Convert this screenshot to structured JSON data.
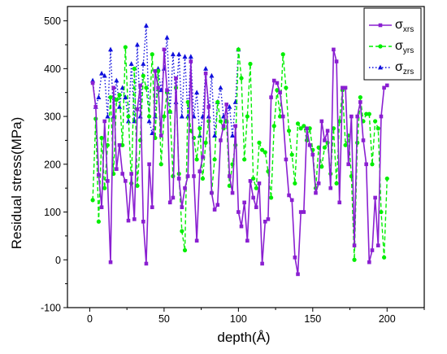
{
  "chart_data": {
    "type": "line",
    "xlabel": "depth(Å)",
    "ylabel": "Residual stress(MPa)",
    "xlim": [
      -15,
      225
    ],
    "ylim": [
      -100,
      530
    ],
    "x_ticks": [
      0,
      50,
      100,
      150,
      200
    ],
    "y_ticks": [
      -100,
      0,
      100,
      200,
      300,
      400,
      500
    ],
    "grid": false,
    "legend_position": "top-right",
    "series": [
      {
        "name": "σxrs",
        "legend_symbol": "σ",
        "legend_subscript": "xrs",
        "color": "#8a1fd1",
        "line_style": "solid",
        "marker": "square",
        "x": [
          2,
          4,
          6,
          8,
          10,
          12,
          14,
          16,
          18,
          20,
          22,
          24,
          26,
          28,
          30,
          32,
          34,
          36,
          38,
          40,
          42,
          44,
          46,
          48,
          50,
          52,
          54,
          56,
          58,
          60,
          62,
          64,
          66,
          68,
          70,
          72,
          74,
          76,
          78,
          80,
          82,
          84,
          86,
          88,
          90,
          92,
          94,
          96,
          98,
          100,
          102,
          104,
          106,
          108,
          110,
          112,
          114,
          116,
          118,
          120,
          122,
          124,
          126,
          128,
          130,
          132,
          134,
          136,
          138,
          140,
          142,
          144,
          146,
          148,
          150,
          152,
          154,
          156,
          158,
          160,
          162,
          164,
          166,
          168,
          170,
          172,
          174,
          176,
          178,
          180,
          182,
          184,
          186,
          188,
          190,
          192,
          194,
          196,
          198,
          200
        ],
        "y": [
          370,
          320,
          178,
          110,
          290,
          165,
          -5,
          360,
          190,
          240,
          180,
          165,
          82,
          180,
          85,
          315,
          365,
          80,
          -8,
          200,
          110,
          395,
          360,
          260,
          440,
          355,
          120,
          130,
          380,
          170,
          110,
          150,
          175,
          415,
          175,
          40,
          185,
          215,
          390,
          320,
          140,
          105,
          115,
          250,
          280,
          325,
          175,
          140,
          280,
          100,
          70,
          120,
          40,
          165,
          130,
          110,
          160,
          -8,
          80,
          85,
          340,
          375,
          370,
          350,
          300,
          210,
          135,
          125,
          5,
          -30,
          100,
          100,
          275,
          240,
          220,
          140,
          160,
          290,
          250,
          270,
          150,
          440,
          415,
          120,
          360,
          360,
          200,
          300,
          30,
          300,
          330,
          250,
          200,
          -5,
          20,
          130,
          30,
          300,
          360,
          365
        ]
      },
      {
        "name": "σyrs",
        "legend_symbol": "σ",
        "legend_subscript": "yrs",
        "color": "#00ee00",
        "line_style": "dashed",
        "marker": "circle",
        "x": [
          2,
          4,
          6,
          8,
          10,
          12,
          14,
          16,
          18,
          20,
          22,
          24,
          26,
          28,
          30,
          32,
          34,
          36,
          38,
          40,
          42,
          44,
          46,
          48,
          50,
          52,
          54,
          56,
          58,
          60,
          62,
          64,
          66,
          68,
          70,
          72,
          74,
          76,
          78,
          80,
          82,
          84,
          86,
          88,
          90,
          92,
          94,
          96,
          98,
          100,
          102,
          104,
          106,
          108,
          110,
          112,
          114,
          116,
          118,
          120,
          122,
          124,
          126,
          128,
          130,
          132,
          134,
          136,
          138,
          140,
          142,
          144,
          146,
          148,
          150,
          152,
          154,
          156,
          158,
          160,
          162,
          164,
          166,
          168,
          170,
          172,
          174,
          176,
          178,
          180,
          182,
          184,
          186,
          188,
          190,
          192,
          194,
          196,
          198,
          200
        ],
        "y": [
          125,
          295,
          80,
          255,
          150,
          240,
          340,
          180,
          335,
          345,
          240,
          445,
          300,
          160,
          400,
          155,
          250,
          385,
          360,
          300,
          430,
          255,
          395,
          200,
          300,
          350,
          310,
          175,
          360,
          180,
          60,
          20,
          330,
          270,
          255,
          210,
          275,
          170,
          245,
          290,
          140,
          210,
          330,
          290,
          275,
          290,
          155,
          200,
          240,
          440,
          380,
          210,
          300,
          410,
          170,
          150,
          245,
          230,
          225,
          185,
          130,
          280,
          355,
          300,
          430,
          360,
          270,
          220,
          160,
          285,
          275,
          280,
          250,
          275,
          230,
          150,
          235,
          195,
          235,
          245,
          180,
          275,
          160,
          290,
          355,
          240,
          260,
          175,
          0,
          245,
          340,
          290,
          305,
          305,
          200,
          290,
          275,
          100,
          5,
          170
        ]
      },
      {
        "name": "σzrs",
        "legend_symbol": "σ",
        "legend_subscript": "zrs",
        "color": "#1010dd",
        "line_style": "dotted",
        "marker": "triangle",
        "x": [
          2,
          4,
          6,
          8,
          10,
          12,
          14,
          16,
          18,
          20,
          22,
          24,
          26,
          28,
          30,
          32,
          34,
          36,
          38,
          40,
          42,
          44,
          46,
          48,
          50,
          52,
          54,
          56,
          58,
          60,
          62,
          64,
          66,
          68,
          70,
          72,
          74,
          76,
          78,
          80,
          82,
          84,
          86,
          88,
          90,
          92,
          94,
          96,
          98,
          100
        ],
        "y": [
          375,
          320,
          340,
          390,
          385,
          300,
          440,
          300,
          375,
          320,
          360,
          340,
          290,
          410,
          290,
          450,
          300,
          410,
          490,
          290,
          265,
          300,
          400,
          355,
          400,
          465,
          310,
          430,
          330,
          430,
          300,
          425,
          300,
          425,
          300,
          350,
          260,
          300,
          400,
          300,
          385,
          260,
          330,
          360,
          300,
          290,
          320,
          260,
          330,
          440
        ]
      }
    ]
  }
}
